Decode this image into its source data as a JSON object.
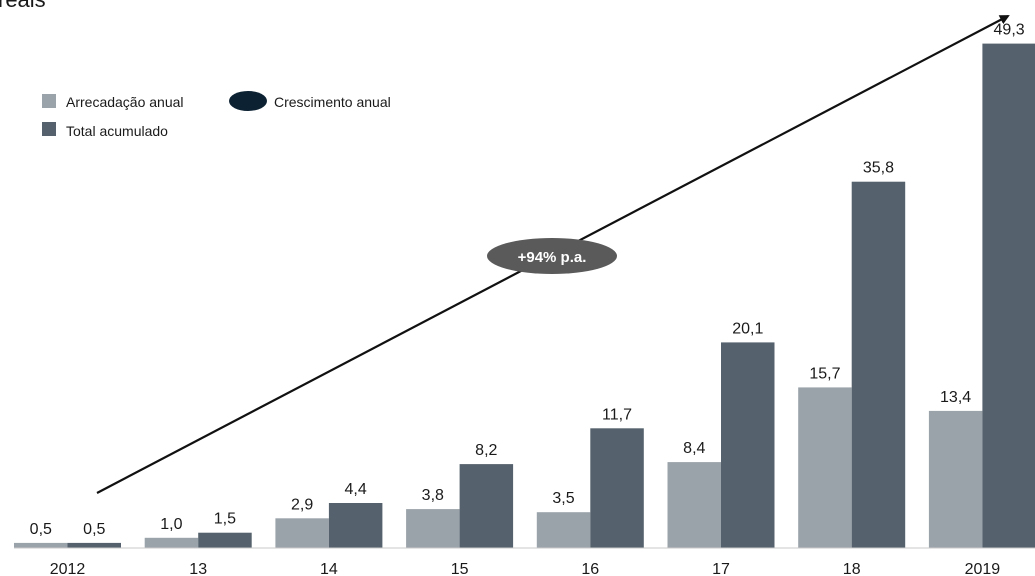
{
  "chart_data": {
    "type": "bar",
    "unit_text": "reais",
    "categories": [
      "2012",
      "13",
      "14",
      "15",
      "16",
      "17",
      "18",
      "2019"
    ],
    "series": [
      {
        "name": "Arrecadação anual",
        "color": "#9ba3aa",
        "values": [
          0.5,
          1.0,
          2.9,
          3.8,
          3.5,
          8.4,
          15.7,
          13.4
        ],
        "labels": [
          "0,5",
          "1,0",
          "2,9",
          "3,8",
          "3,5",
          "8,4",
          "15,7",
          "13,4"
        ]
      },
      {
        "name": "Total acumulado",
        "color": "#55626d",
        "values": [
          0.5,
          1.5,
          4.4,
          8.2,
          11.7,
          20.1,
          35.8,
          49.3
        ],
        "labels": [
          "0,5",
          "1,5",
          "4,4",
          "8,2",
          "11,7",
          "20,1",
          "35,8",
          "49,3"
        ]
      }
    ],
    "growth_legend": {
      "name": "Crescimento anual",
      "color": "#0c2233"
    },
    "growth_annotation": "+94% p.a.",
    "ylim": [
      0,
      52
    ],
    "grid": false,
    "legend_position": "top-left"
  }
}
